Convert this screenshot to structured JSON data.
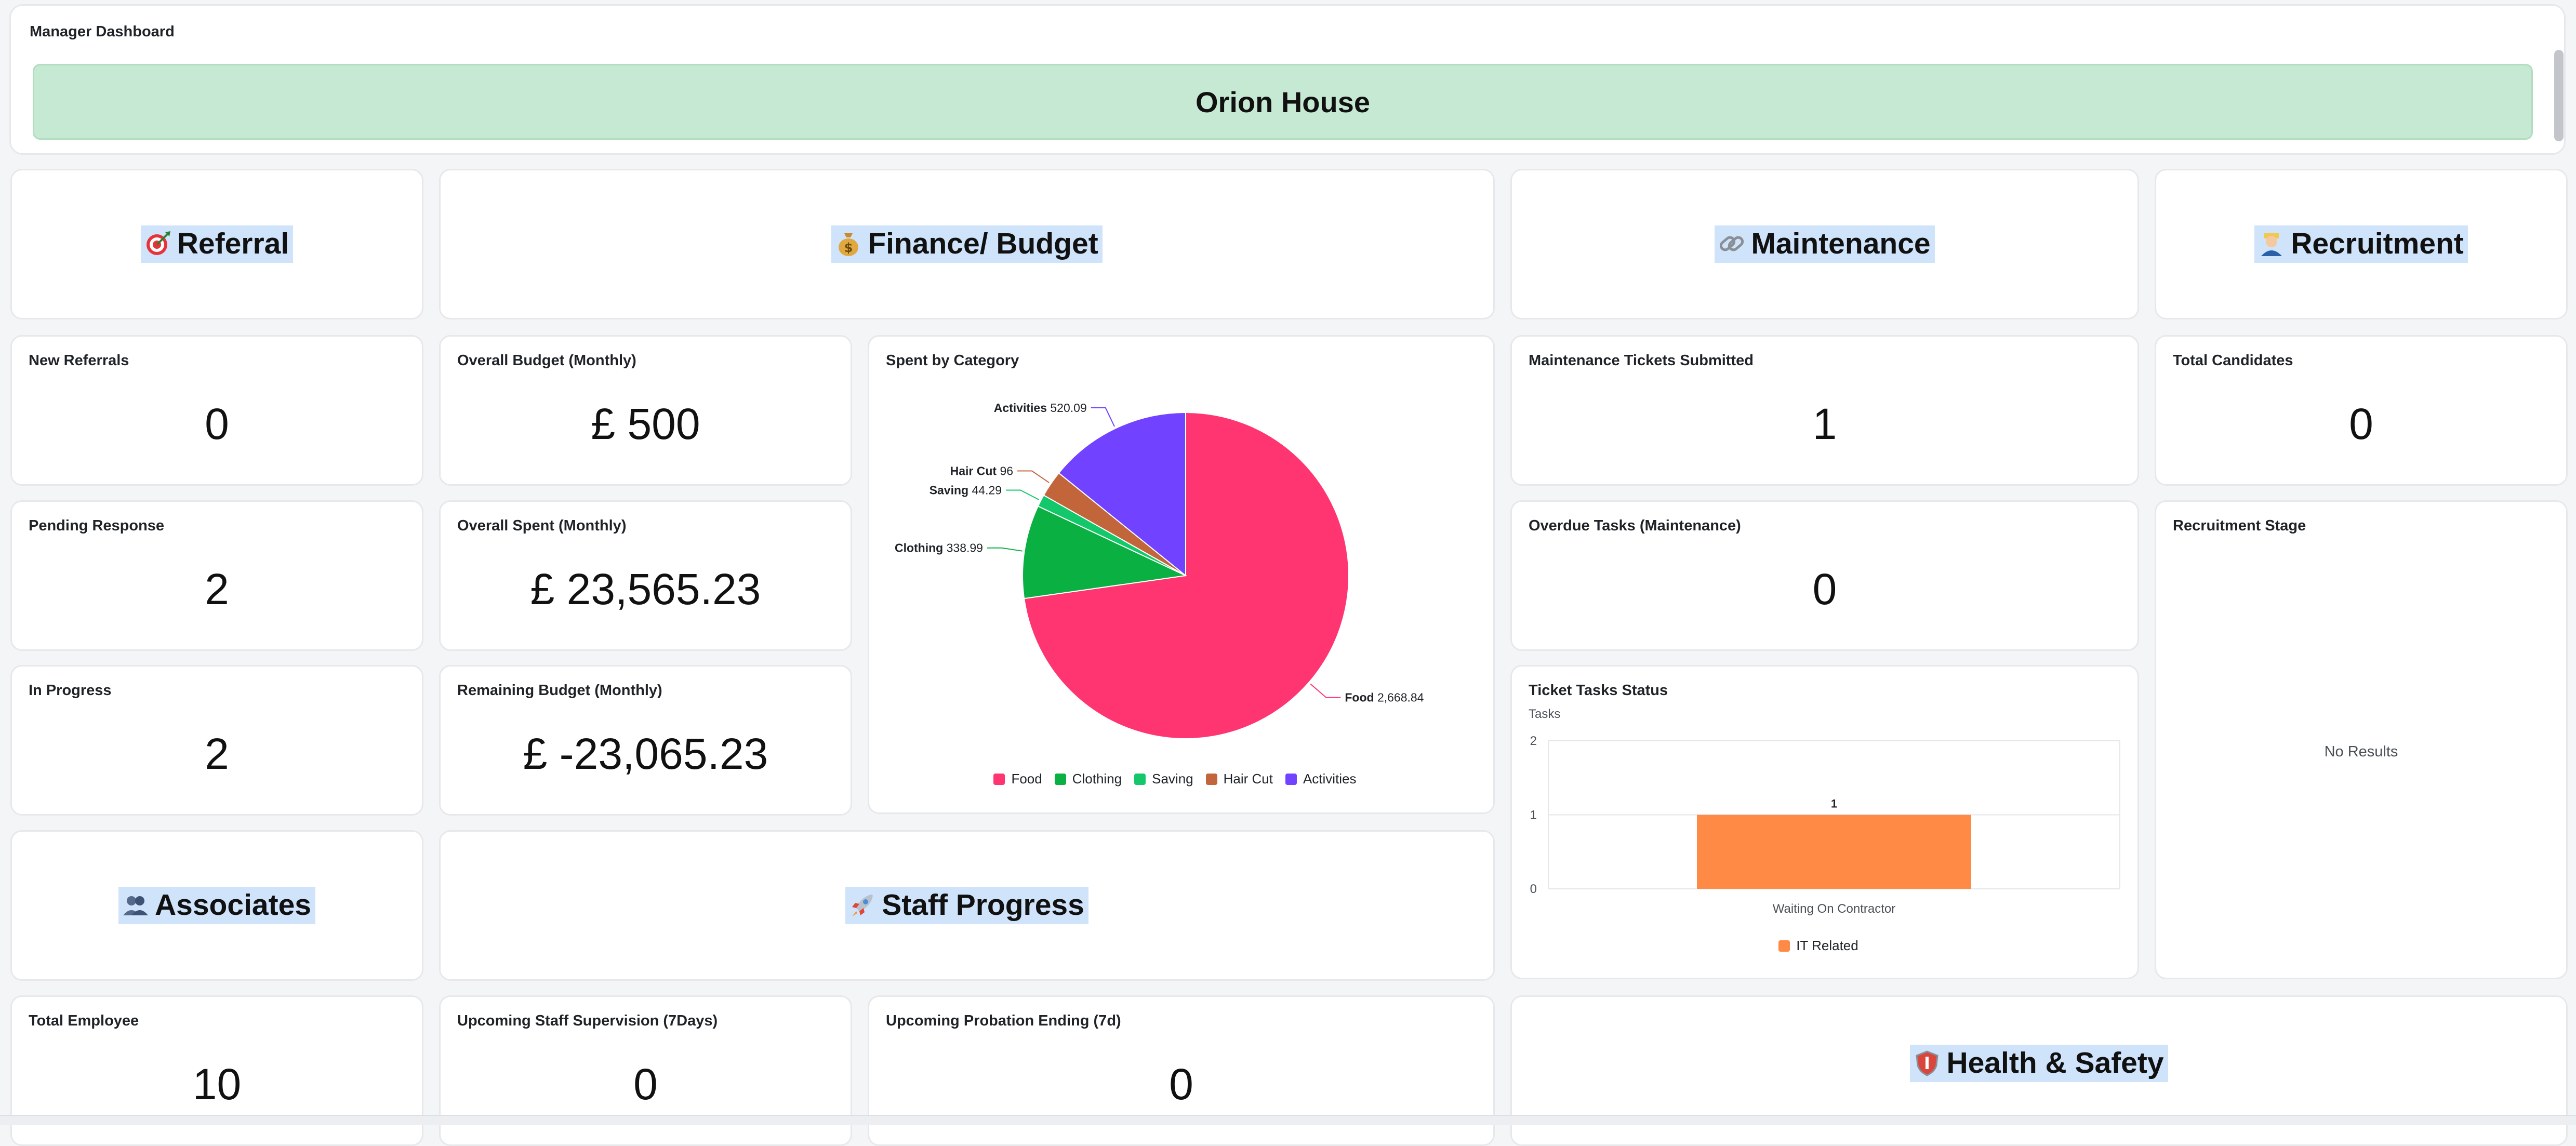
{
  "header": {
    "title": "Manager Dashboard",
    "house_name": "Orion House"
  },
  "sections": {
    "referral": {
      "label": "Referral",
      "icon": "target-icon"
    },
    "finance": {
      "label": "Finance/ Budget",
      "icon": "money-bag-icon"
    },
    "maintenance": {
      "label": "Maintenance",
      "icon": "link-icon"
    },
    "recruitment": {
      "label": "Recruitment",
      "icon": "person-icon"
    },
    "associates": {
      "label": "Associates",
      "icon": "people-icon"
    },
    "staff_progress": {
      "label": "Staff Progress",
      "icon": "rocket-icon"
    },
    "health_safety": {
      "label": "Health & Safety",
      "icon": "shield-icon"
    }
  },
  "kpis": {
    "new_referrals": {
      "label": "New Referrals",
      "value": "0"
    },
    "pending_response": {
      "label": "Pending Response",
      "value": "2"
    },
    "in_progress": {
      "label": "In Progress",
      "value": "2"
    },
    "overall_budget": {
      "label": "Overall Budget (Monthly)",
      "value": "£ 500"
    },
    "overall_spent": {
      "label": "Overall Spent (Monthly)",
      "value": "£ 23,565.23"
    },
    "remaining_budget": {
      "label": "Remaining Budget (Monthly)",
      "value": "£ -23,065.23"
    },
    "maintenance_tickets": {
      "label": "Maintenance Tickets Submitted",
      "value": "1"
    },
    "overdue_tasks": {
      "label": "Overdue Tasks (Maintenance)",
      "value": "0"
    },
    "total_candidates": {
      "label": "Total Candidates",
      "value": "0"
    },
    "total_employee": {
      "label": "Total Employee",
      "value": "10"
    },
    "upcoming_supervision": {
      "label": "Upcoming Staff Supervision (7Days)",
      "value": "0"
    },
    "upcoming_probation": {
      "label": "Upcoming Probation Ending (7d)",
      "value": "0"
    }
  },
  "recruitment_stage": {
    "label": "Recruitment Stage",
    "empty_text": "No Results"
  },
  "chart_data": [
    {
      "type": "pie",
      "title": "Spent by Category",
      "categories": [
        "Food",
        "Clothing",
        "Saving",
        "Hair Cut",
        "Activities"
      ],
      "values": [
        2668.84,
        338.99,
        44.29,
        96,
        520.09
      ],
      "value_labels": [
        "2,668.84",
        "338.99",
        "44.29",
        "96",
        "520.09"
      ],
      "colors": [
        "#ff3572",
        "#0bb042",
        "#12c86a",
        "#c2653b",
        "#7142ff"
      ],
      "legend": "bottom"
    },
    {
      "type": "bar",
      "title": "Ticket Tasks Status",
      "ylabel": "Tasks",
      "categories": [
        "Waiting On Contractor"
      ],
      "series": [
        {
          "name": "IT Related",
          "values": [
            1
          ],
          "color": "#ff8a45"
        }
      ],
      "ylim": [
        0,
        2
      ],
      "yticks": [
        "0",
        "1",
        "2"
      ],
      "data_labels": [
        "1"
      ],
      "legend": "bottom",
      "grid": true
    }
  ]
}
